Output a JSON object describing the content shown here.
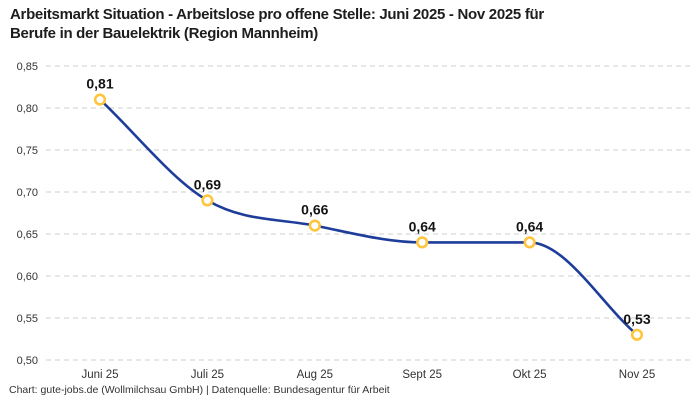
{
  "header": {
    "title_line1": "Arbeitsmarkt Situation - Arbeitslose pro offene Stelle: Juni 2025 - Nov 2025 für",
    "title_line2": "Berufe in der Bauelektrik (Region Mannheim)"
  },
  "footer": {
    "text": "Chart: gute-jobs.de (Wollmilchsau GmbH) | Datenquelle: Bundesagentur für Arbeit"
  },
  "chart_data": {
    "type": "line",
    "title": "Arbeitsmarkt Situation - Arbeitslose pro offene Stelle: Juni 2025 - Nov 2025 für Berufe in der Bauelektrik (Region Mannheim)",
    "categories": [
      "Juni 25",
      "Juli 25",
      "Aug 25",
      "Sept 25",
      "Okt 25",
      "Nov 25"
    ],
    "series": [
      {
        "name": "Arbeitslose pro offene Stelle",
        "values": [
          0.81,
          0.69,
          0.66,
          0.64,
          0.64,
          0.53
        ]
      }
    ],
    "value_labels": [
      "0,81",
      "0,69",
      "0,66",
      "0,64",
      "0,64",
      "0,53"
    ],
    "xlabel": "",
    "ylabel": "",
    "ylim": [
      0.5,
      0.85
    ],
    "ytick_values": [
      0.85,
      0.8,
      0.75,
      0.7,
      0.65,
      0.6,
      0.55,
      0.5
    ],
    "ytick_labels": [
      "0,85",
      "0,80",
      "0,75",
      "0,70",
      "0,65",
      "0,60",
      "0,55",
      "0,50"
    ],
    "grid": "horizontal-dashed",
    "legend_position": "none",
    "line_style": "smooth-monotone",
    "colors": {
      "line": "#1e3d9b",
      "marker_ring": "#ffc53d",
      "marker_fill": "#ffffff",
      "grid": "#cccccc",
      "data_label": "#141414",
      "tick_label": "#333333",
      "title": "#1d1d1d"
    }
  }
}
